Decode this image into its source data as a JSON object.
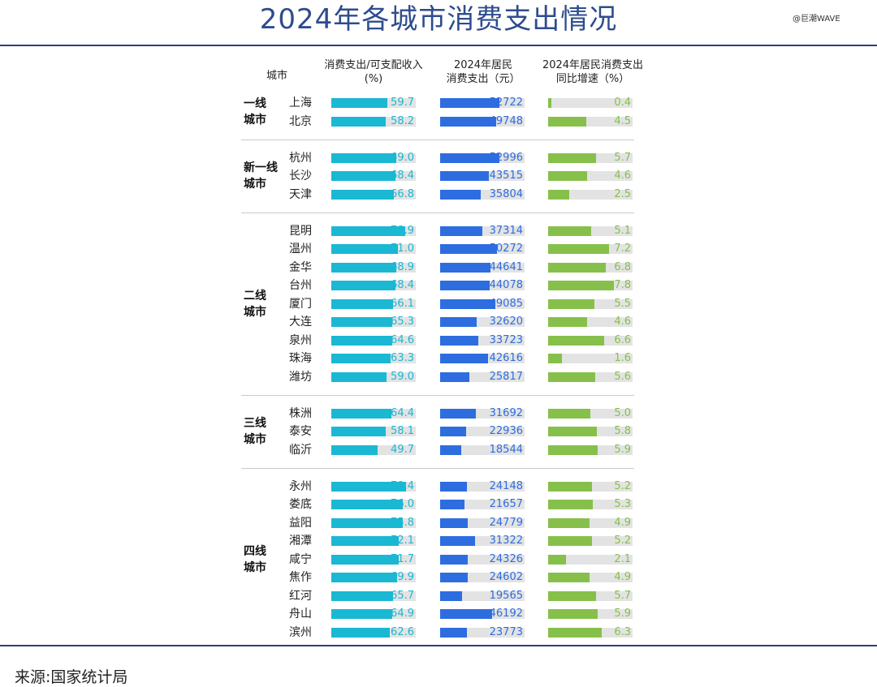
{
  "title": "2024年各城市消费支出情况",
  "watermark": "@巨潮WAVE",
  "source": "来源:国家统计局",
  "columns": {
    "city": "城市",
    "ratio_line1": "消费支出/可支配收入",
    "ratio_line2": "(%)",
    "spend_line1": "2024年居民",
    "spend_line2": "消费支出（元）",
    "growth_line1": "2024年居民消费支出",
    "growth_line2": "同比增速（%）"
  },
  "colors": {
    "ratio_bar": "#1ab8d3",
    "spend_bar": "#2d6de0",
    "growth_bar": "#86c04a",
    "bar_bg": "#e3e3e3",
    "ratio_text": "#1ab8d3",
    "spend_text": "#2d6de0",
    "growth_text": "#86c04a",
    "title": "#2e4c8e"
  },
  "chart_data": {
    "type": "table",
    "groups": [
      {
        "label": "一线城市",
        "rows": [
          {
            "city": "上海",
            "ratio": "59.7",
            "spend": "52722",
            "growth": "0.4"
          },
          {
            "city": "北京",
            "ratio": "58.2",
            "spend": "49748",
            "growth": "4.5"
          }
        ]
      },
      {
        "label": "新一线城市",
        "rows": [
          {
            "city": "杭州",
            "ratio": "69.0",
            "spend": "52996",
            "growth": "5.7"
          },
          {
            "city": "长沙",
            "ratio": "68.4",
            "spend": "43515",
            "growth": "4.6"
          },
          {
            "city": "天津",
            "ratio": "66.8",
            "spend": "35804",
            "growth": "2.5"
          }
        ]
      },
      {
        "label": "二线城市",
        "rows": [
          {
            "city": "昆明",
            "ratio": "78.9",
            "spend": "37314",
            "growth": "5.1"
          },
          {
            "city": "温州",
            "ratio": "71.0",
            "spend": "50272",
            "growth": "7.2"
          },
          {
            "city": "金华",
            "ratio": "68.9",
            "spend": "44641",
            "growth": "6.8"
          },
          {
            "city": "台州",
            "ratio": "68.4",
            "spend": "44078",
            "growth": "7.8"
          },
          {
            "city": "厦门",
            "ratio": "66.1",
            "spend": "49085",
            "growth": "5.5"
          },
          {
            "city": "大连",
            "ratio": "65.3",
            "spend": "32620",
            "growth": "4.6"
          },
          {
            "city": "泉州",
            "ratio": "64.6",
            "spend": "33723",
            "growth": "6.6"
          },
          {
            "city": "珠海",
            "ratio": "63.3",
            "spend": "42616",
            "growth": "1.6"
          },
          {
            "city": "潍坊",
            "ratio": "59.0",
            "spend": "25817",
            "growth": "5.6"
          }
        ]
      },
      {
        "label": "三线城市",
        "rows": [
          {
            "city": "株洲",
            "ratio": "64.4",
            "spend": "31692",
            "growth": "5.0"
          },
          {
            "city": "泰安",
            "ratio": "58.1",
            "spend": "22936",
            "growth": "5.8"
          },
          {
            "city": "临沂",
            "ratio": "49.7",
            "spend": "18544",
            "growth": "5.9"
          }
        ]
      },
      {
        "label": "四线城市",
        "rows": [
          {
            "city": "永州",
            "ratio": "79.4",
            "spend": "24148",
            "growth": "5.2"
          },
          {
            "city": "娄底",
            "ratio": "76.0",
            "spend": "21657",
            "growth": "5.3"
          },
          {
            "city": "益阳",
            "ratio": "75.8",
            "spend": "24779",
            "growth": "4.9"
          },
          {
            "city": "湘潭",
            "ratio": "72.1",
            "spend": "31322",
            "growth": "5.2"
          },
          {
            "city": "咸宁",
            "ratio": "71.7",
            "spend": "24326",
            "growth": "2.1"
          },
          {
            "city": "焦作",
            "ratio": "69.9",
            "spend": "24602",
            "growth": "4.9"
          },
          {
            "city": "红河",
            "ratio": "65.7",
            "spend": "19565",
            "growth": "5.7"
          },
          {
            "city": "舟山",
            "ratio": "64.9",
            "spend": "46192",
            "growth": "5.9"
          },
          {
            "city": "滨州",
            "ratio": "62.6",
            "spend": "23773",
            "growth": "6.3"
          }
        ]
      }
    ]
  }
}
